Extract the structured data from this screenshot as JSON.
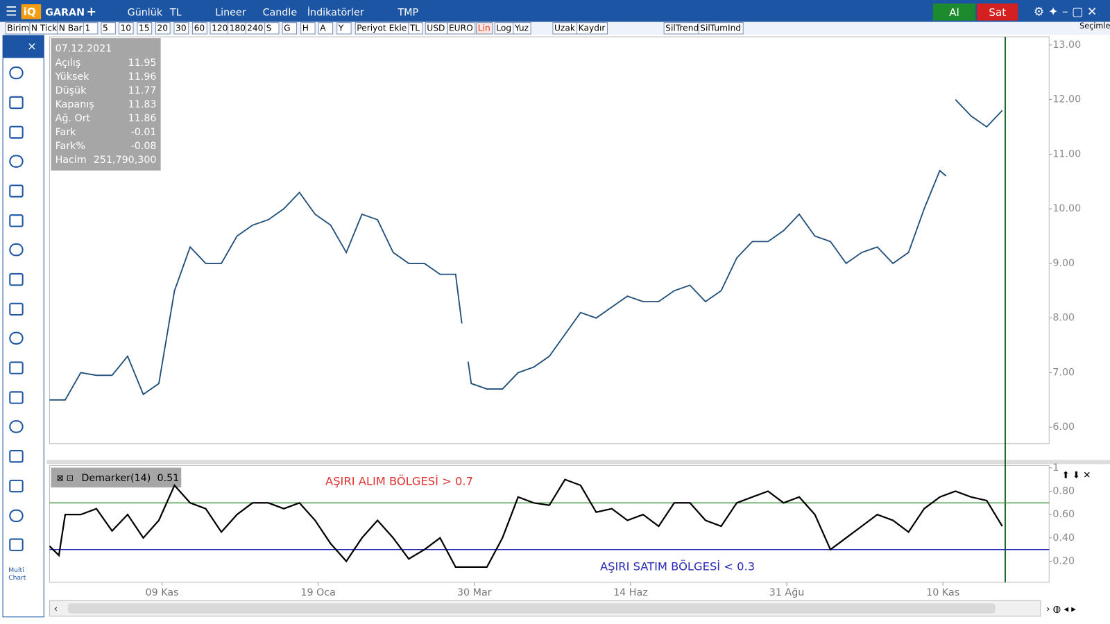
{
  "toolbar": {
    "symbol": "GARAN",
    "add": "+",
    "items": [
      "Günlük",
      "TL",
      "Lineer",
      "Candle",
      "İndikatörler",
      "TMP"
    ],
    "buy": "Al",
    "sell": "Sat"
  },
  "period_bar": {
    "items": [
      "Birim",
      "N Tick",
      "N Bar",
      "1",
      "5",
      "10",
      "15",
      "20",
      "30",
      "60",
      "120",
      "180",
      "240",
      "S",
      "G",
      "H",
      "A",
      "Y",
      "Periyot Ekle",
      "TL",
      "USD",
      "EURO",
      "Lin",
      "Log",
      "Yuz",
      "Uzak",
      "Kaydır",
      "SilTrend",
      "SilTumInd"
    ],
    "active": "Lin",
    "selections": "Seçimler"
  },
  "sidebar": {
    "close": "×",
    "multi_chart": [
      "Multi",
      "Chart"
    ]
  },
  "info_box": {
    "date": "07.12.2021",
    "rows": [
      [
        "Açılış",
        "11.95"
      ],
      [
        "Yüksek",
        "11.96"
      ],
      [
        "Düşük",
        "11.77"
      ],
      [
        "Kapanış",
        "11.83"
      ],
      [
        "Ağ. Ort",
        "11.86"
      ],
      [
        "Fark",
        "-0.01"
      ],
      [
        "Fark%",
        "-0.08"
      ],
      [
        "Hacim",
        "251,790,300"
      ]
    ]
  },
  "chart_data": [
    {
      "type": "line",
      "color": "#1f4e79",
      "x": [
        0,
        5,
        10,
        15,
        20,
        25,
        30,
        35,
        40,
        45,
        50,
        55,
        60,
        65,
        70,
        75,
        80,
        85,
        90,
        95,
        100,
        105,
        110,
        115,
        120,
        125,
        130,
        132,
        133,
        134,
        135,
        140,
        145,
        150,
        155,
        160,
        165,
        170,
        175,
        180,
        185,
        190,
        195,
        200,
        205,
        210,
        215,
        220,
        225,
        230,
        235,
        240,
        245,
        250,
        255,
        260,
        265,
        270,
        275,
        280,
        285,
        287,
        288,
        290,
        295,
        300,
        305
      ],
      "values": [
        6.5,
        6.5,
        7.0,
        6.95,
        6.95,
        7.3,
        6.6,
        6.8,
        8.5,
        9.3,
        9.0,
        9.0,
        9.5,
        9.7,
        9.8,
        10.0,
        10.3,
        9.9,
        9.7,
        9.2,
        9.9,
        9.8,
        9.2,
        9.0,
        9.0,
        8.8,
        8.8,
        7.9,
        null,
        7.2,
        6.8,
        6.7,
        6.7,
        7.0,
        7.1,
        7.3,
        7.7,
        8.1,
        8.0,
        8.2,
        8.4,
        8.3,
        8.3,
        8.5,
        8.6,
        8.3,
        8.5,
        9.1,
        9.4,
        9.4,
        9.6,
        9.9,
        9.5,
        9.4,
        9.0,
        9.2,
        9.3,
        9.0,
        9.2,
        10.0,
        10.7,
        10.6,
        null,
        12.0,
        11.7,
        11.5,
        11.8
      ],
      "xlim": [
        0,
        320
      ],
      "xticks": [
        {
          "value": 36,
          "label": "09 Kas"
        },
        {
          "value": 86,
          "label": "19 Oca"
        },
        {
          "value": 136,
          "label": "30 Mar"
        },
        {
          "value": 186,
          "label": "14 Haz"
        },
        {
          "value": 236,
          "label": "31 Ağu"
        },
        {
          "value": 286,
          "label": "10 Kas"
        }
      ],
      "ylim": [
        5.7,
        13.15
      ],
      "yticks": [
        {
          "value": 6,
          "label": "6.00"
        },
        {
          "value": 7,
          "label": "7.00"
        },
        {
          "value": 8,
          "label": "8.00"
        },
        {
          "value": 9,
          "label": "9.00"
        },
        {
          "value": 10,
          "label": "10.00"
        },
        {
          "value": 11,
          "label": "11.00"
        },
        {
          "value": 12,
          "label": "12.00"
        },
        {
          "value": 13,
          "label": "13.00"
        }
      ]
    },
    {
      "type": "line",
      "title": "Demarker(14)",
      "last_value": 0.51,
      "color": "#000000",
      "x": [
        0,
        3,
        5,
        10,
        15,
        20,
        25,
        30,
        35,
        40,
        45,
        50,
        55,
        60,
        65,
        70,
        75,
        80,
        85,
        90,
        95,
        100,
        105,
        110,
        115,
        120,
        125,
        130,
        135,
        140,
        145,
        150,
        155,
        160,
        165,
        170,
        175,
        180,
        185,
        190,
        195,
        200,
        205,
        210,
        215,
        220,
        225,
        230,
        235,
        240,
        245,
        250,
        255,
        260,
        265,
        270,
        275,
        280,
        285,
        290,
        295,
        300,
        305
      ],
      "values": [
        0.33,
        0.25,
        0.6,
        0.6,
        0.65,
        0.46,
        0.6,
        0.4,
        0.55,
        0.85,
        0.7,
        0.65,
        0.45,
        0.6,
        0.7,
        0.7,
        0.65,
        0.7,
        0.55,
        0.35,
        0.2,
        0.4,
        0.55,
        0.4,
        0.22,
        0.3,
        0.4,
        0.15,
        0.15,
        0.15,
        0.4,
        0.75,
        0.7,
        0.68,
        0.9,
        0.85,
        0.62,
        0.65,
        0.55,
        0.6,
        0.5,
        0.7,
        0.7,
        0.55,
        0.5,
        0.7,
        0.75,
        0.8,
        0.7,
        0.75,
        0.6,
        0.3,
        0.4,
        0.5,
        0.6,
        0.55,
        0.45,
        0.65,
        0.75,
        0.8,
        0.75,
        0.72,
        0.5
      ],
      "xlim": [
        0,
        320
      ],
      "ylim": [
        0.02,
        1.02
      ],
      "yticks": [
        {
          "value": 0.2,
          "label": "0.20"
        },
        {
          "value": 0.4,
          "label": "0.40"
        },
        {
          "value": 0.6,
          "label": "0.60"
        },
        {
          "value": 0.8,
          "label": "0.80"
        },
        1
      ],
      "reference_lines": [
        {
          "value": 0.7,
          "color": "#3a8f3a"
        },
        {
          "value": 0.3,
          "color": "#2b2bb8"
        }
      ],
      "annotations": [
        {
          "text": "AŞIRI ALIM BÖLGESİ > 0.7",
          "color": "#e03030",
          "value": 0.88
        },
        {
          "text": "AŞIRI SATIM BÖLGESİ < 0.3",
          "color": "#2b2bb8",
          "value": 0.15
        }
      ]
    }
  ]
}
